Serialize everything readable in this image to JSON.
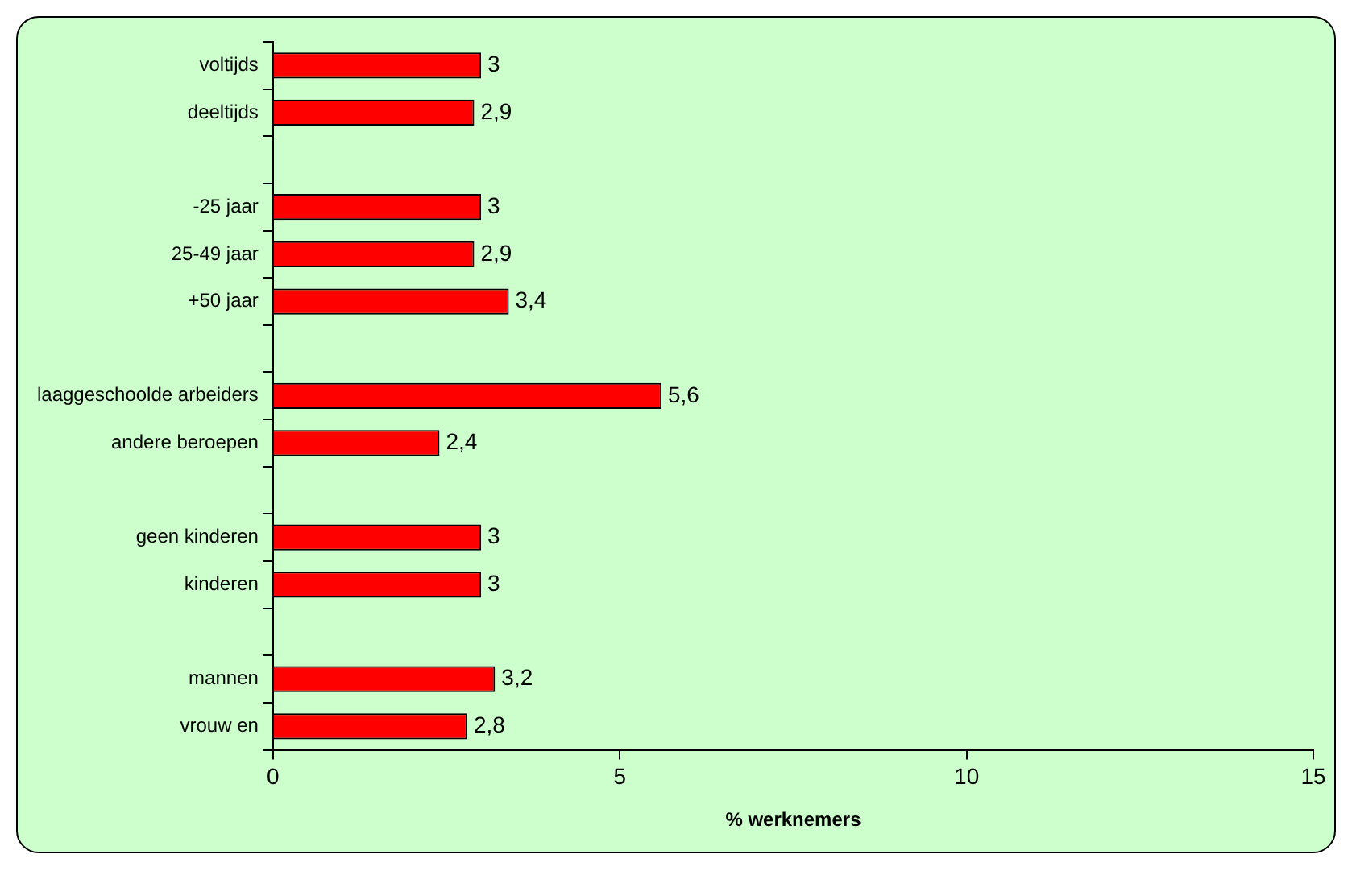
{
  "chart_data": {
    "type": "bar",
    "orientation": "horizontal",
    "xlabel": "% werknemers",
    "categories": [
      "voltijds",
      "deeltijds",
      null,
      "-25 jaar",
      "25-49 jaar",
      "+50 jaar",
      null,
      "laaggeschoolde arbeiders",
      "andere beroepen",
      null,
      "geen kinderen",
      "kinderen",
      null,
      "mannen",
      "vrouw en"
    ],
    "values": [
      3,
      2.9,
      null,
      3,
      2.9,
      3.4,
      null,
      5.6,
      2.4,
      null,
      3,
      3,
      null,
      3.2,
      2.8
    ],
    "value_labels": [
      "3",
      "2,9",
      null,
      "3",
      "2,9",
      "3,4",
      null,
      "5,6",
      "2,4",
      null,
      "3",
      "3",
      null,
      "3,2",
      "2,8"
    ],
    "color": "#ff0000",
    "xlim": [
      0,
      15
    ],
    "xticks": [
      0,
      5,
      10,
      15
    ],
    "grid": false,
    "legend": false
  }
}
